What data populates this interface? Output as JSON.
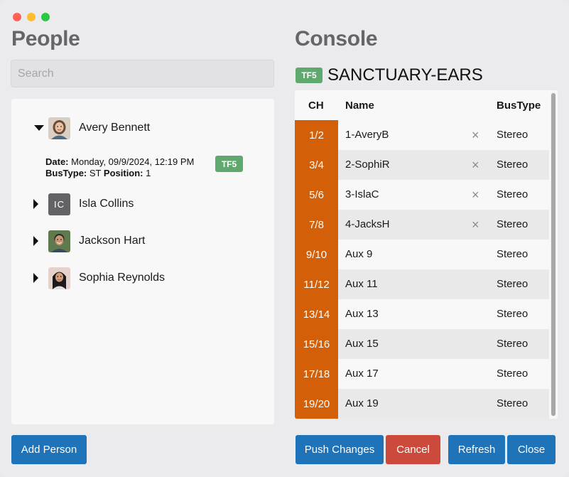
{
  "window": {
    "controls": [
      {
        "name": "close",
        "color": "#fe5f57"
      },
      {
        "name": "minimize",
        "color": "#febc2e"
      },
      {
        "name": "zoom",
        "color": "#28c840"
      }
    ]
  },
  "people": {
    "title": "People",
    "search": {
      "placeholder": "Search",
      "value": ""
    },
    "items": [
      {
        "name": "Avery Bennett",
        "expanded": true,
        "avatar": "photo-woman-icon",
        "details": {
          "date_label": "Date:",
          "date_value": "Monday, 09/9/2024, 12:19 PM",
          "bustype_label": "BusType:",
          "bustype_value": "ST",
          "position_label": "Position:",
          "position_value": "1",
          "badge": "TF5"
        }
      },
      {
        "name": "Isla Collins",
        "expanded": false,
        "avatar_initials": "IC"
      },
      {
        "name": "Jackson Hart",
        "expanded": false,
        "avatar": "photo-man-icon"
      },
      {
        "name": "Sophia Reynolds",
        "expanded": false,
        "avatar": "photo-woman-icon"
      }
    ],
    "add_button": "Add Person"
  },
  "console": {
    "title": "Console",
    "badge": "TF5",
    "name": "SANCTUARY-EARS",
    "columns": {
      "ch": "CH",
      "name": "Name",
      "bustype": "BusType"
    },
    "rows": [
      {
        "ch": "1/2",
        "name": "1-AveryB",
        "bustype": "Stereo",
        "removable": true
      },
      {
        "ch": "3/4",
        "name": "2-SophiR",
        "bustype": "Stereo",
        "removable": true
      },
      {
        "ch": "5/6",
        "name": "3-IslaC",
        "bustype": "Stereo",
        "removable": true
      },
      {
        "ch": "7/8",
        "name": "4-JacksH",
        "bustype": "Stereo",
        "removable": true
      },
      {
        "ch": "9/10",
        "name": "Aux 9",
        "bustype": "Stereo",
        "removable": false
      },
      {
        "ch": "11/12",
        "name": "Aux 11",
        "bustype": "Stereo",
        "removable": false
      },
      {
        "ch": "13/14",
        "name": "Aux 13",
        "bustype": "Stereo",
        "removable": false
      },
      {
        "ch": "15/16",
        "name": "Aux 15",
        "bustype": "Stereo",
        "removable": false
      },
      {
        "ch": "17/18",
        "name": "Aux 17",
        "bustype": "Stereo",
        "removable": false
      },
      {
        "ch": "19/20",
        "name": "Aux 19",
        "bustype": "Stereo",
        "removable": false
      }
    ],
    "remove_glyph": "×",
    "buttons": {
      "push": "Push Changes",
      "cancel": "Cancel",
      "refresh": "Refresh",
      "close": "Close"
    }
  },
  "colors": {
    "channel": "#d35f08",
    "badge": "#5fa96e",
    "primary": "#1f73b8",
    "danger": "#cc4a3b"
  }
}
